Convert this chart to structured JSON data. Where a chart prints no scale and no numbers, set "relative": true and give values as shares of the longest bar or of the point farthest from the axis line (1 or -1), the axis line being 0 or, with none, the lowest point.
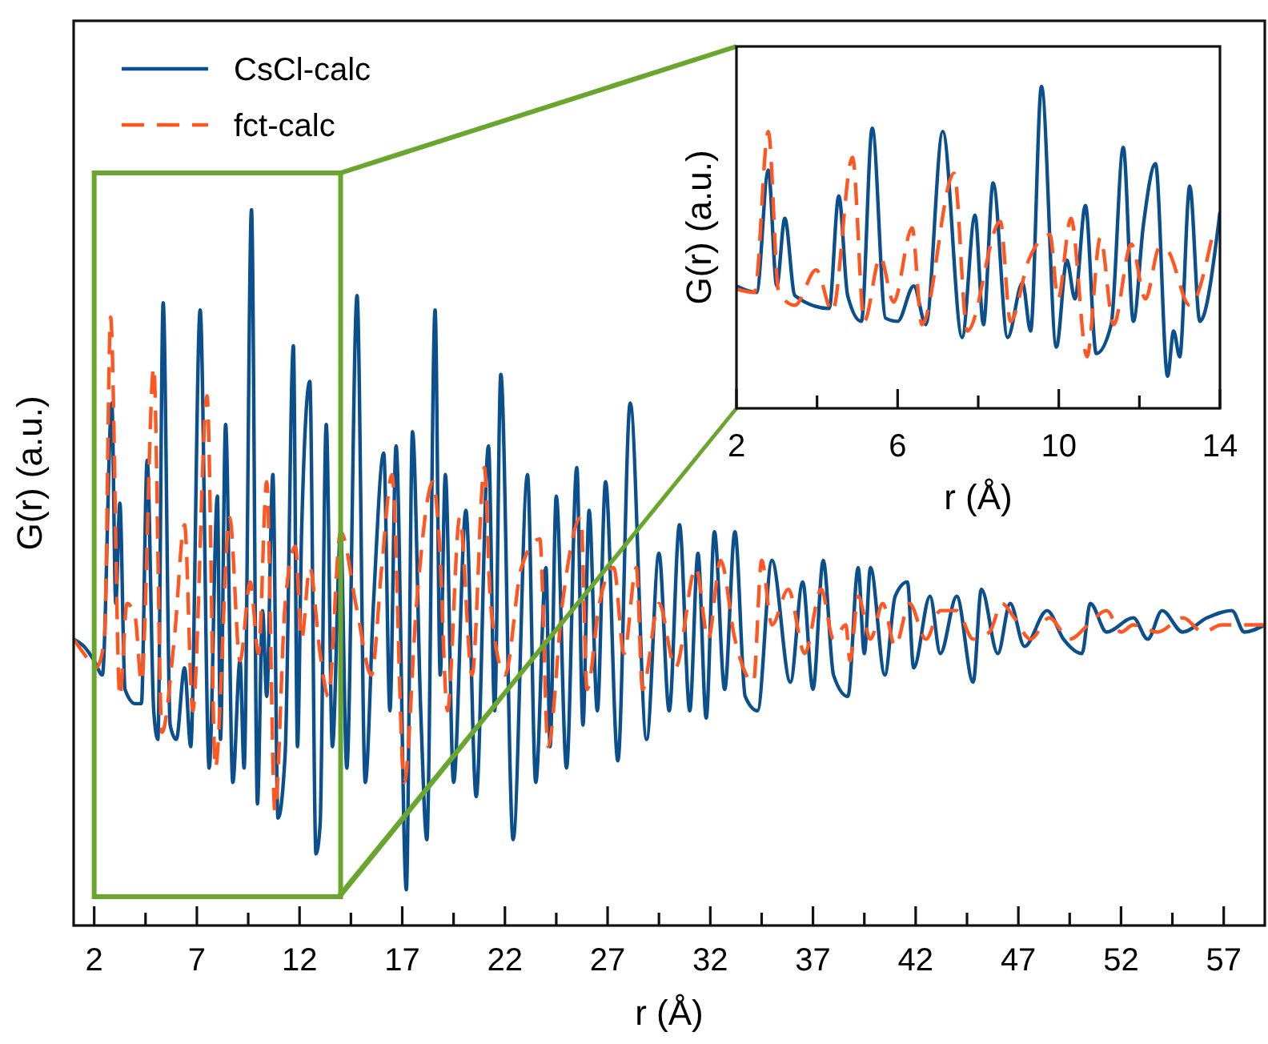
{
  "chart_data": [
    {
      "type": "line",
      "xlabel": "r (Å)",
      "ylabel": "G(r) (a.u.)",
      "relative": true,
      "legend": "top left",
      "grid": false,
      "xlim": [
        1,
        59
      ],
      "xticks": [
        2,
        {
          "value": 4.5,
          "label": null
        },
        7,
        {
          "value": 9.5,
          "label": null
        },
        12,
        {
          "value": 14.5,
          "label": null
        },
        17,
        {
          "value": 19.5,
          "label": null
        },
        22,
        {
          "value": 24.5,
          "label": null
        },
        27,
        {
          "value": 29.5,
          "label": null
        },
        32,
        {
          "value": 34.5,
          "label": null
        },
        37,
        {
          "value": 39.5,
          "label": null
        },
        42,
        {
          "value": 44.5,
          "label": null
        },
        47,
        {
          "value": 49.5,
          "label": null
        },
        52,
        {
          "value": 54.5,
          "label": null
        },
        57
      ],
      "series": [
        {
          "name": "CsCl-calc",
          "color": "#0b4f8c",
          "line_style": "solid",
          "x": [
            1.0,
            1.5,
            2.0,
            2.4,
            2.86,
            3.05,
            3.25,
            3.5,
            4.0,
            4.3,
            4.58,
            4.9,
            5.1,
            5.36,
            5.7,
            6.0,
            6.4,
            6.7,
            7.16,
            7.6,
            8.0,
            8.15,
            8.4,
            8.75,
            9.1,
            9.3,
            9.66,
            9.95,
            10.2,
            10.4,
            10.7,
            10.95,
            11.3,
            11.7,
            11.9,
            12.1,
            12.5,
            12.8,
            13.0,
            13.3,
            13.6,
            14.0,
            14.3,
            14.8,
            15.2,
            15.6,
            16.1,
            16.4,
            16.7,
            17.2,
            17.5,
            17.9,
            18.2,
            18.6,
            18.85,
            19.1,
            19.5,
            20.1,
            20.6,
            21.2,
            21.5,
            21.8,
            22.4,
            23.1,
            23.5,
            24.0,
            24.2,
            24.5,
            25.0,
            25.5,
            25.8,
            26.1,
            26.5,
            26.9,
            27.5,
            28.1,
            28.9,
            29.5,
            30.0,
            30.5,
            31.0,
            31.4,
            31.8,
            32.2,
            32.7,
            33.2,
            33.7,
            34.3,
            35.0,
            35.9,
            36.5,
            37.0,
            37.5,
            38.0,
            38.7,
            39.2,
            39.5,
            39.8,
            40.5,
            41.0,
            41.6,
            41.9,
            42.7,
            43.2,
            44.0,
            44.8,
            45.2,
            46.0,
            46.6,
            47.3,
            48.4,
            49.2,
            50.1,
            50.5,
            51.3,
            52.6,
            53.3,
            54.0,
            55.0,
            56.2,
            57.4,
            58.0,
            59.0
          ],
          "values": [
            0.4,
            0.39,
            0.37,
            0.35,
            0.73,
            0.45,
            0.59,
            0.33,
            0.31,
            0.31,
            0.65,
            0.3,
            0.26,
            0.87,
            0.28,
            0.26,
            0.36,
            0.25,
            0.86,
            0.22,
            0.6,
            0.26,
            0.7,
            0.2,
            0.37,
            0.22,
            1.0,
            0.17,
            0.44,
            0.32,
            0.63,
            0.15,
            0.24,
            0.81,
            0.25,
            0.55,
            0.76,
            0.1,
            0.14,
            0.7,
            0.25,
            0.55,
            0.22,
            0.88,
            0.2,
            0.45,
            0.66,
            0.3,
            0.67,
            0.05,
            0.69,
            0.3,
            0.12,
            0.86,
            0.35,
            0.63,
            0.2,
            0.58,
            0.18,
            0.67,
            0.3,
            0.77,
            0.12,
            0.63,
            0.2,
            0.5,
            0.25,
            0.6,
            0.22,
            0.64,
            0.28,
            0.58,
            0.3,
            0.62,
            0.23,
            0.73,
            0.26,
            0.52,
            0.3,
            0.56,
            0.3,
            0.52,
            0.29,
            0.55,
            0.33,
            0.55,
            0.32,
            0.3,
            0.51,
            0.34,
            0.48,
            0.33,
            0.51,
            0.35,
            0.32,
            0.5,
            0.38,
            0.5,
            0.35,
            0.46,
            0.48,
            0.36,
            0.46,
            0.38,
            0.46,
            0.34,
            0.47,
            0.38,
            0.45,
            0.39,
            0.44,
            0.4,
            0.38,
            0.45,
            0.41,
            0.43,
            0.4,
            0.44,
            0.41,
            0.43,
            0.44,
            0.41,
            0.42
          ]
        },
        {
          "name": "fct-calc",
          "color": "#ff5722",
          "line_style": "dashed",
          "x": [
            1.0,
            1.5,
            2.1,
            2.5,
            2.8,
            3.25,
            3.6,
            4.0,
            4.3,
            4.9,
            5.3,
            5.9,
            6.4,
            6.8,
            7.5,
            7.9,
            8.6,
            9.1,
            9.6,
            10.0,
            10.4,
            10.8,
            11.3,
            11.8,
            12.1,
            12.5,
            13.0,
            13.4,
            14.0,
            14.8,
            15.5,
            16.0,
            16.5,
            17.1,
            17.7,
            18.5,
            18.8,
            19.2,
            19.8,
            20.4,
            21.0,
            21.3,
            22.0,
            22.8,
            23.7,
            24.1,
            24.8,
            25.7,
            26.0,
            26.6,
            27.3,
            27.8,
            28.4,
            28.7,
            29.5,
            30.3,
            31.3,
            31.9,
            32.5,
            33.2,
            34.1,
            34.5,
            35.0,
            35.8,
            36.6,
            37.4,
            38.0,
            38.6,
            38.8,
            39.2,
            39.8,
            40.4,
            41.0,
            41.7,
            42.5,
            43.2,
            44.0,
            44.8,
            45.6,
            46.2,
            46.8,
            47.6,
            48.5,
            49.5,
            50.4,
            51.3,
            52.0,
            52.6,
            53.8,
            55.0,
            56.0,
            56.9,
            58.0,
            59.0
          ],
          "values": [
            0.4,
            0.38,
            0.36,
            0.4,
            0.85,
            0.32,
            0.45,
            0.43,
            0.34,
            0.78,
            0.27,
            0.4,
            0.56,
            0.3,
            0.74,
            0.22,
            0.57,
            0.37,
            0.48,
            0.38,
            0.62,
            0.16,
            0.45,
            0.53,
            0.4,
            0.5,
            0.38,
            0.32,
            0.55,
            0.44,
            0.35,
            0.5,
            0.63,
            0.2,
            0.45,
            0.62,
            0.54,
            0.3,
            0.57,
            0.35,
            0.64,
            0.45,
            0.35,
            0.5,
            0.54,
            0.25,
            0.45,
            0.57,
            0.33,
            0.45,
            0.5,
            0.38,
            0.5,
            0.33,
            0.45,
            0.36,
            0.5,
            0.4,
            0.51,
            0.4,
            0.34,
            0.51,
            0.42,
            0.47,
            0.38,
            0.47,
            0.4,
            0.42,
            0.37,
            0.46,
            0.4,
            0.45,
            0.39,
            0.45,
            0.4,
            0.44,
            0.44,
            0.4,
            0.41,
            0.45,
            0.43,
            0.4,
            0.43,
            0.4,
            0.42,
            0.44,
            0.41,
            0.42,
            0.41,
            0.43,
            0.41,
            0.42,
            0.42,
            0.42
          ]
        }
      ]
    },
    {
      "type": "line",
      "xlabel": "r (Å)",
      "ylabel": "G(r) (a.u.)",
      "relative": true,
      "grid": false,
      "xlim": [
        2,
        14
      ],
      "xticks": [
        2,
        {
          "value": 4,
          "label": null
        },
        6,
        {
          "value": 8,
          "label": null
        },
        10,
        {
          "value": 12,
          "label": null
        },
        14
      ],
      "series": [
        {
          "color": "#0b4f8c",
          "line_style": "solid",
          "x": [
            2.0,
            2.5,
            2.79,
            3.0,
            3.2,
            3.45,
            4.3,
            4.54,
            4.76,
            5.1,
            5.37,
            5.7,
            6.0,
            6.4,
            6.7,
            7.12,
            7.6,
            7.92,
            8.13,
            8.37,
            8.73,
            9.1,
            9.3,
            9.57,
            9.94,
            10.2,
            10.4,
            10.66,
            10.93,
            11.3,
            11.6,
            11.85,
            12.1,
            12.4,
            12.7,
            12.85,
            13.0,
            13.25,
            13.5,
            14.0
          ],
          "values": [
            0.38,
            0.36,
            0.74,
            0.38,
            0.59,
            0.35,
            0.31,
            0.66,
            0.35,
            0.27,
            0.87,
            0.28,
            0.27,
            0.38,
            0.26,
            0.86,
            0.22,
            0.6,
            0.26,
            0.7,
            0.22,
            0.39,
            0.24,
            1.0,
            0.19,
            0.46,
            0.34,
            0.63,
            0.17,
            0.26,
            0.81,
            0.27,
            0.57,
            0.76,
            0.1,
            0.24,
            0.16,
            0.69,
            0.27,
            0.61
          ]
        },
        {
          "color": "#ff5722",
          "line_style": "dashed",
          "x": [
            2.0,
            2.45,
            2.79,
            3.05,
            3.45,
            3.98,
            4.38,
            4.88,
            5.17,
            5.57,
            5.9,
            6.36,
            6.6,
            7.4,
            7.73,
            8.55,
            8.8,
            9.25,
            9.78,
            9.98,
            10.3,
            10.7,
            11.03,
            11.36,
            11.8,
            12.15,
            12.5,
            12.7,
            13.25,
            13.8
          ],
          "values": [
            0.37,
            0.36,
            0.86,
            0.36,
            0.32,
            0.43,
            0.3,
            0.78,
            0.27,
            0.47,
            0.33,
            0.56,
            0.26,
            0.73,
            0.24,
            0.58,
            0.27,
            0.46,
            0.54,
            0.34,
            0.59,
            0.16,
            0.53,
            0.26,
            0.51,
            0.34,
            0.5,
            0.49,
            0.32,
            0.53
          ]
        }
      ]
    }
  ]
}
